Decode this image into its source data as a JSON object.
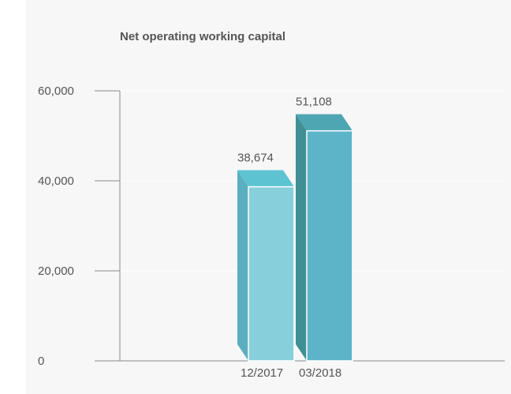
{
  "chart_data": {
    "type": "bar",
    "title": "Net operating working capital",
    "xlabel": "",
    "ylabel": "",
    "categories": [
      "12/2017",
      "03/2018"
    ],
    "values": [
      38674,
      51108
    ],
    "data_labels": [
      "38,674",
      "51,108"
    ],
    "ylim": [
      0,
      60000
    ],
    "yticks": [
      0,
      20000,
      40000,
      60000
    ],
    "ytick_labels": [
      "0",
      "20,000",
      "40,000",
      "60,000"
    ],
    "grid": true,
    "legend": "none",
    "colors": {
      "series_front": [
        "#86cfdb",
        "#5db4c8"
      ],
      "series_side": [
        "#5aaec0",
        "#3f8f95"
      ],
      "series_top": [
        "#5dc3d2",
        "#4ea6b2"
      ],
      "gridline": "#ffffff",
      "axis": "#888888",
      "background": "#f7f7f7"
    }
  }
}
